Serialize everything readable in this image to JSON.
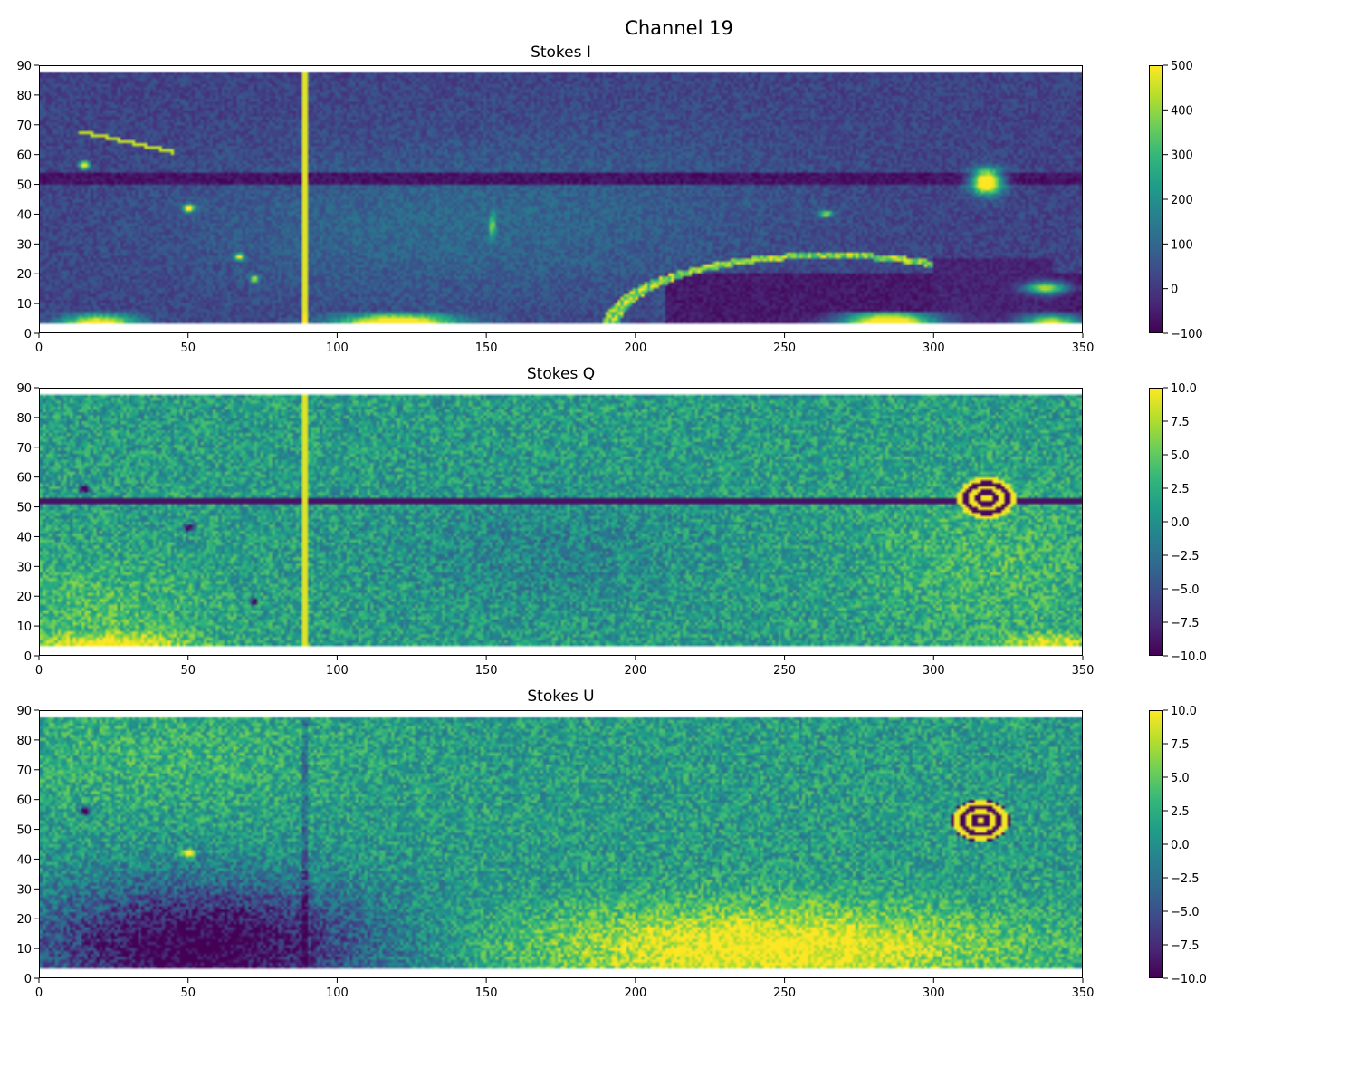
{
  "figure": {
    "title": "Channel 19"
  },
  "chart_data": [
    {
      "type": "heatmap",
      "title": "Stokes I",
      "xlim": [
        0,
        350
      ],
      "ylim": [
        0,
        90
      ],
      "xticks": [
        "0",
        "50",
        "100",
        "150",
        "200",
        "250",
        "300",
        "350"
      ],
      "yticks": [
        "0",
        "10",
        "20",
        "30",
        "40",
        "50",
        "60",
        "70",
        "80",
        "90"
      ],
      "colormap": "viridis",
      "colorbar": {
        "range": [
          -100,
          500
        ],
        "ticks": [
          "500",
          "400",
          "300",
          "200",
          "100",
          "0",
          "−100"
        ]
      },
      "features": "bright source near (318, 51); arc of bright emission from (192, 8) curving to (300, 23); vertical streak near x=89; horizontal dark band at y 50-54; bright patches along bottom edge"
    },
    {
      "type": "heatmap",
      "title": "Stokes Q",
      "xlim": [
        0,
        350
      ],
      "ylim": [
        0,
        90
      ],
      "xticks": [
        "0",
        "50",
        "100",
        "150",
        "200",
        "250",
        "300",
        "350"
      ],
      "yticks": [
        "0",
        "10",
        "20",
        "30",
        "40",
        "50",
        "60",
        "70",
        "80",
        "90"
      ],
      "colormap": "viridis",
      "colorbar": {
        "range": [
          -10.0,
          10.0
        ],
        "ticks": [
          "10.0",
          "7.5",
          "5.0",
          "2.5",
          "0.0",
          "−2.5",
          "−5.0",
          "−7.5",
          "−10.0"
        ]
      },
      "features": "ringed polarization pattern at (318, 53); vertical streak near x=89; dark horizontal line at y=52"
    },
    {
      "type": "heatmap",
      "title": "Stokes U",
      "xlim": [
        0,
        350
      ],
      "ylim": [
        0,
        90
      ],
      "xticks": [
        "0",
        "50",
        "100",
        "150",
        "200",
        "250",
        "300",
        "350"
      ],
      "yticks": [
        "0",
        "10",
        "20",
        "30",
        "40",
        "50",
        "60",
        "70",
        "80",
        "90"
      ],
      "colormap": "viridis",
      "colorbar": {
        "range": [
          -10.0,
          10.0
        ],
        "ticks": [
          "10.0",
          "7.5",
          "5.0",
          "2.5",
          "0.0",
          "−2.5",
          "−5.0",
          "−7.5",
          "−10.0"
        ]
      },
      "features": "ringed pattern at (316, 53); dark lower-left region x 0-120, y 3-35; bright lower region x 160-330, y 3-25"
    }
  ]
}
